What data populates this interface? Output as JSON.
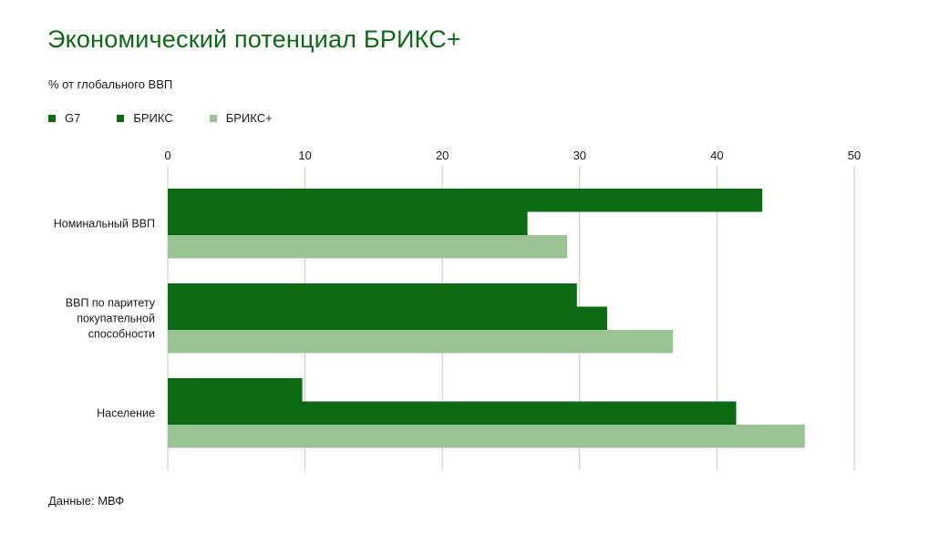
{
  "title": "Экономический потенциал БРИКС+",
  "subtitle": "% от глобального ВВП",
  "source": "Данные: МВФ",
  "colors": {
    "g7": "#0c6a12",
    "brics": "#0c6a12",
    "brics_plus": "#9bc494",
    "grid": "#b9d6b3",
    "title": "#0c6a12"
  },
  "chart_data": {
    "type": "bar",
    "orientation": "horizontal",
    "title": "Экономический потенциал БРИКС+",
    "subtitle": "% от глобального ВВП",
    "xlim": [
      0,
      50
    ],
    "xticks": [
      0,
      10,
      20,
      30,
      40,
      50
    ],
    "grid": true,
    "legend_position": "top-left",
    "categories": [
      [
        "Номинальный ВВП"
      ],
      [
        "ВВП по паритету",
        "покупательной",
        "способности"
      ],
      [
        "Население"
      ]
    ],
    "series": [
      {
        "name": "G7",
        "values": [
          43.3,
          29.8,
          9.8
        ]
      },
      {
        "name": "БРИКС",
        "values": [
          26.2,
          32.0,
          41.4
        ]
      },
      {
        "name": "БРИКС+",
        "values": [
          29.1,
          36.8,
          46.4
        ]
      }
    ]
  }
}
